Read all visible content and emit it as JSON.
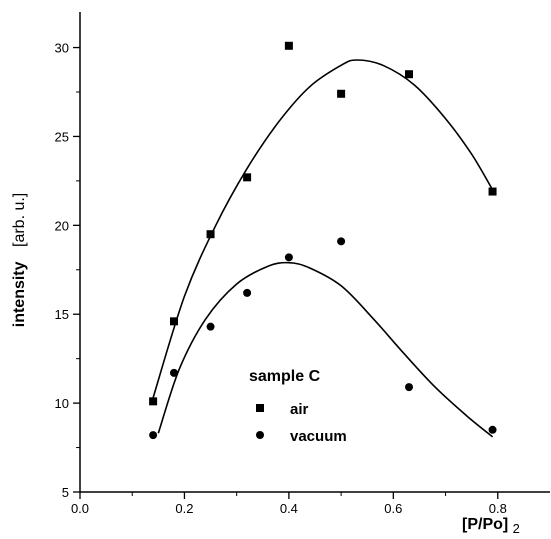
{
  "chart_data": {
    "type": "scatter",
    "xlabel": "[P/Po]",
    "xlabel_subscript": "2",
    "ylabel_main": "intensity",
    "ylabel_unit": "[arb. u.]",
    "xlim": [
      0.0,
      0.9
    ],
    "ylim": [
      5,
      32
    ],
    "xticks": [
      0.0,
      0.2,
      0.4,
      0.6,
      0.8
    ],
    "xtick_labels": [
      "0.0",
      "0.2",
      "0.4",
      "0.6",
      "0.8"
    ],
    "yticks": [
      5,
      10,
      15,
      20,
      25,
      30
    ],
    "ytick_labels": [
      "5",
      "10",
      "15",
      "20",
      "25",
      "30"
    ],
    "grid": false,
    "legend": {
      "title": "sample C",
      "placement": "bottom-center"
    },
    "series": [
      {
        "name": "air",
        "marker": "square",
        "color": "#000000",
        "points": [
          {
            "x": 0.14,
            "y": 10.1
          },
          {
            "x": 0.18,
            "y": 14.6
          },
          {
            "x": 0.25,
            "y": 19.5
          },
          {
            "x": 0.32,
            "y": 22.7
          },
          {
            "x": 0.4,
            "y": 30.1
          },
          {
            "x": 0.5,
            "y": 27.4
          },
          {
            "x": 0.63,
            "y": 28.5
          },
          {
            "x": 0.79,
            "y": 21.9
          }
        ],
        "fit_curve": [
          {
            "x": 0.14,
            "y": 10.3
          },
          {
            "x": 0.2,
            "y": 16.0
          },
          {
            "x": 0.26,
            "y": 20.0
          },
          {
            "x": 0.32,
            "y": 23.2
          },
          {
            "x": 0.38,
            "y": 25.8
          },
          {
            "x": 0.44,
            "y": 27.8
          },
          {
            "x": 0.5,
            "y": 29.0
          },
          {
            "x": 0.53,
            "y": 29.3
          },
          {
            "x": 0.58,
            "y": 29.0
          },
          {
            "x": 0.64,
            "y": 27.9
          },
          {
            "x": 0.7,
            "y": 26.0
          },
          {
            "x": 0.75,
            "y": 24.0
          },
          {
            "x": 0.79,
            "y": 22.0
          }
        ]
      },
      {
        "name": "vacuum",
        "marker": "circle",
        "color": "#000000",
        "points": [
          {
            "x": 0.14,
            "y": 8.2
          },
          {
            "x": 0.18,
            "y": 11.7
          },
          {
            "x": 0.25,
            "y": 14.3
          },
          {
            "x": 0.32,
            "y": 16.2
          },
          {
            "x": 0.4,
            "y": 18.2
          },
          {
            "x": 0.5,
            "y": 19.1
          },
          {
            "x": 0.63,
            "y": 10.9
          },
          {
            "x": 0.79,
            "y": 8.5
          }
        ],
        "fit_curve": [
          {
            "x": 0.15,
            "y": 8.3
          },
          {
            "x": 0.19,
            "y": 11.9
          },
          {
            "x": 0.24,
            "y": 14.7
          },
          {
            "x": 0.3,
            "y": 16.7
          },
          {
            "x": 0.36,
            "y": 17.7
          },
          {
            "x": 0.4,
            "y": 17.9
          },
          {
            "x": 0.44,
            "y": 17.6
          },
          {
            "x": 0.5,
            "y": 16.6
          },
          {
            "x": 0.56,
            "y": 14.8
          },
          {
            "x": 0.62,
            "y": 12.8
          },
          {
            "x": 0.68,
            "y": 10.9
          },
          {
            "x": 0.74,
            "y": 9.3
          },
          {
            "x": 0.79,
            "y": 8.1
          }
        ]
      }
    ]
  }
}
